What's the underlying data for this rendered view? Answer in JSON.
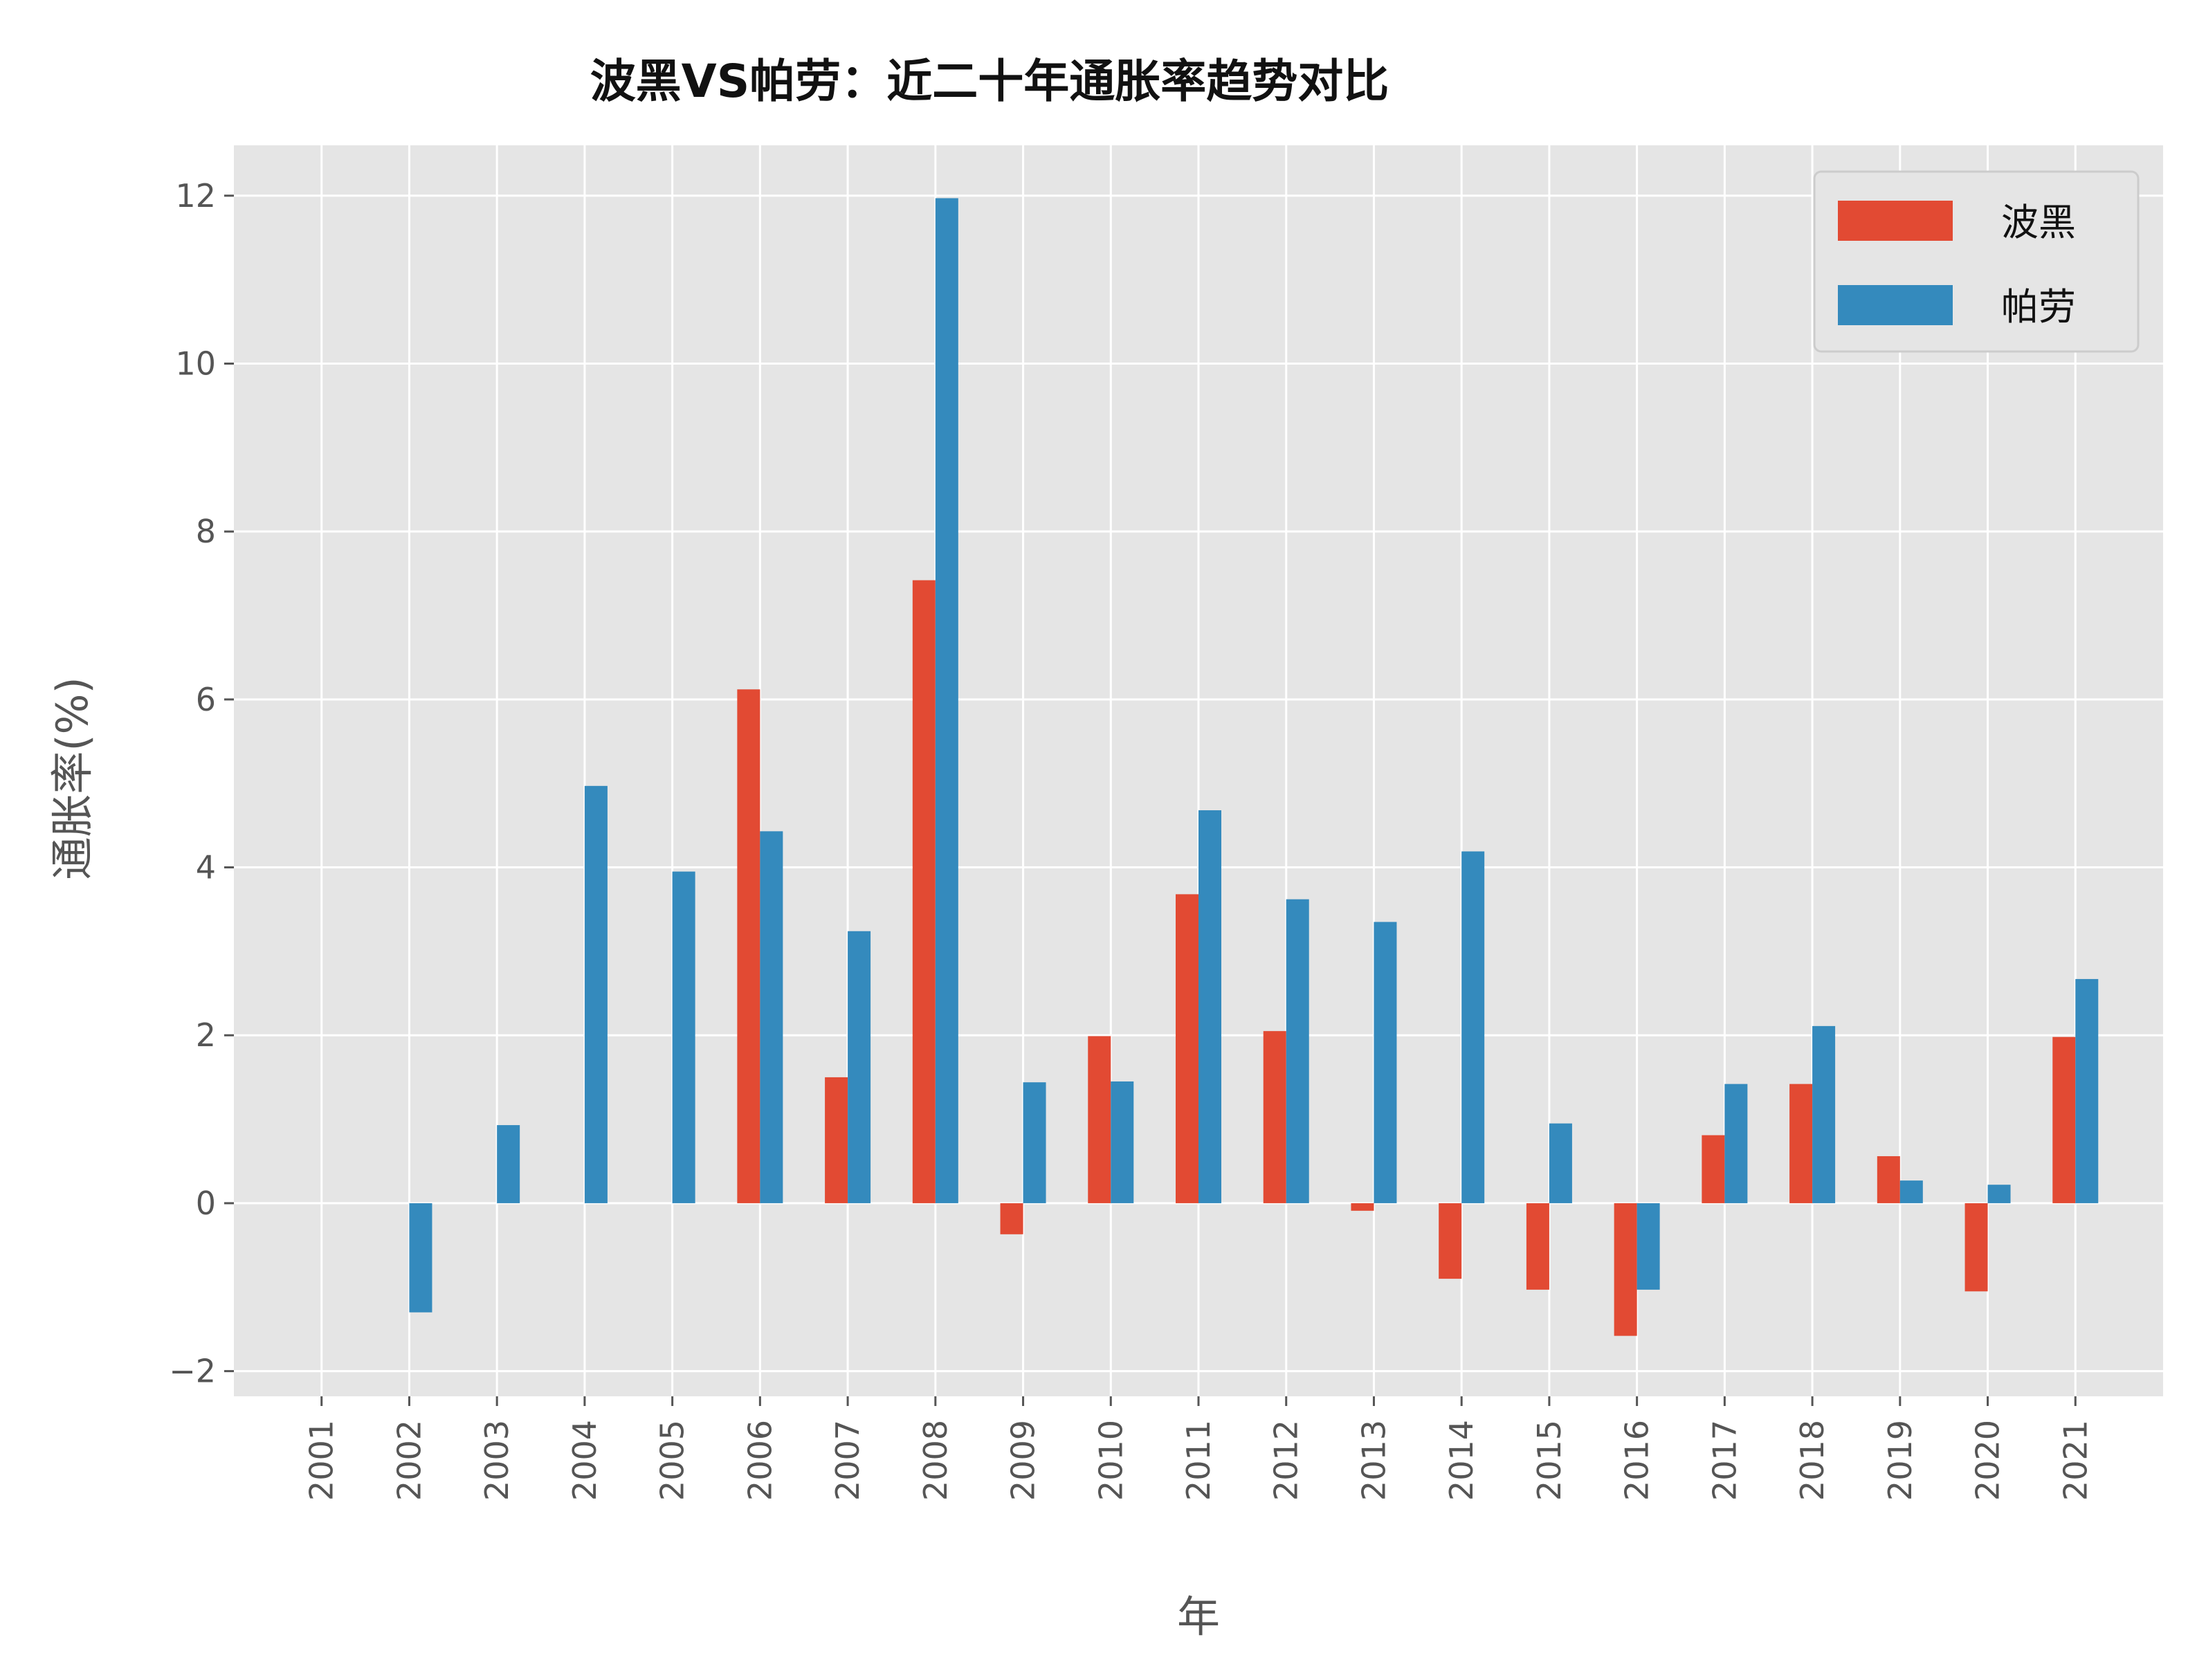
{
  "chart_data": {
    "type": "bar",
    "title": "波黑VS帕劳：近二十年通胀率趋势对比",
    "xlabel": "年",
    "ylabel": "通胀率(%)",
    "ylim": [
      -2.3,
      12.6
    ],
    "yticks": [
      -2,
      0,
      2,
      4,
      6,
      8,
      10,
      12
    ],
    "ytick_labels": [
      "−2",
      "0",
      "2",
      "4",
      "6",
      "8",
      "10",
      "12"
    ],
    "grid": true,
    "legend_position": "top-right",
    "categories": [
      "2001",
      "2002",
      "2003",
      "2004",
      "2005",
      "2006",
      "2007",
      "2008",
      "2009",
      "2010",
      "2011",
      "2012",
      "2013",
      "2014",
      "2015",
      "2016",
      "2017",
      "2018",
      "2019",
      "2020",
      "2021"
    ],
    "series": [
      {
        "name": "波黑",
        "color": "#E24A33",
        "values": [
          0,
          0,
          0,
          0,
          0,
          6.12,
          1.5,
          7.42,
          -0.37,
          1.99,
          3.68,
          2.05,
          -0.09,
          -0.9,
          -1.03,
          -1.58,
          0.81,
          1.42,
          0.56,
          -1.05,
          1.98
        ]
      },
      {
        "name": "帕劳",
        "color": "#348ABD",
        "values": [
          0,
          -1.3,
          0.93,
          4.97,
          3.95,
          4.43,
          3.24,
          11.97,
          1.44,
          1.45,
          4.68,
          3.62,
          3.35,
          4.19,
          0.95,
          -1.03,
          1.42,
          2.11,
          0.27,
          0.22,
          2.67
        ]
      }
    ]
  }
}
